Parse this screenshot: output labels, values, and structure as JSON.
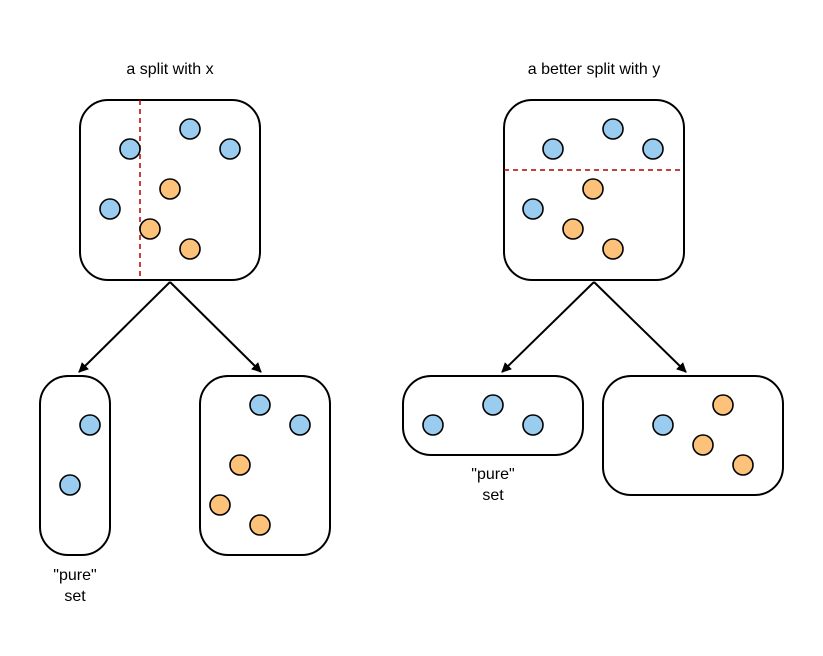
{
  "titles": {
    "left": "a split with x",
    "right": "a better split with y"
  },
  "pure_label": {
    "line1": "\"pure\"",
    "line2": "set"
  },
  "colors": {
    "blue_point": "#99ccee",
    "orange_point": "#fcc27a",
    "split_line": "#b20000"
  },
  "legend_meaning": {
    "blue": "blue-class-point",
    "orange": "orange-class-point"
  }
}
